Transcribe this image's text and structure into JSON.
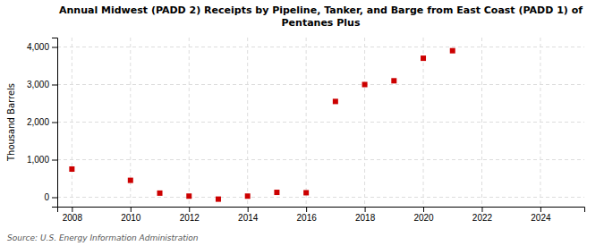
{
  "chart_data": {
    "type": "scatter",
    "title": "Annual Midwest (PADD 2) Receipts by Pipeline, Tanker, and Barge from East Coast (PADD 1) of\nPentanes Plus",
    "ylabel": "Thousand Barrels",
    "source": "Source: U.S. Energy Information Administration",
    "x": [
      2008,
      2010,
      2011,
      2012,
      2013,
      2014,
      2015,
      2016,
      2017,
      2018,
      2019,
      2020,
      2021
    ],
    "values": [
      750,
      450,
      110,
      30,
      -50,
      30,
      130,
      120,
      2550,
      3000,
      3100,
      3700,
      3900
    ],
    "color": "#cc0000",
    "marker": "square",
    "xlim": [
      2007.5,
      2025.5
    ],
    "ylim": [
      -250,
      4250
    ],
    "xticks": [
      2008,
      2010,
      2012,
      2014,
      2016,
      2018,
      2020,
      2022,
      2024
    ],
    "yticks": [
      0,
      {
        "value": 1000,
        "label": "1,000"
      },
      {
        "value": 2000,
        "label": "2,000"
      },
      {
        "value": 3000,
        "label": "3,000"
      },
      {
        "value": 4000,
        "label": "4,000"
      }
    ],
    "grid": true
  }
}
